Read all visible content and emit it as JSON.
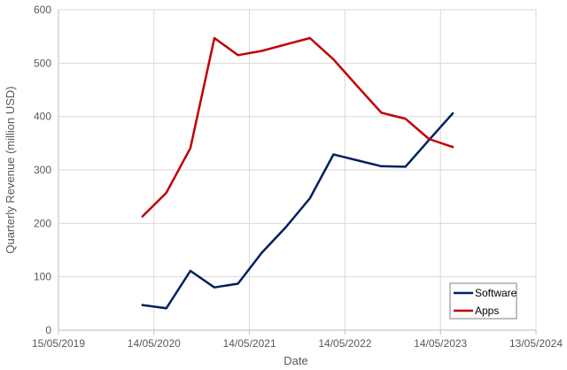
{
  "chart_data": {
    "type": "line",
    "title": "",
    "xlabel": "Date",
    "ylabel": "Quarterly Revenue (million USD)",
    "x_axis_type": "date",
    "xlim": [
      "2019-05-15",
      "2024-05-13"
    ],
    "ylim": [
      0,
      600
    ],
    "x_ticks": [
      "15/05/2019",
      "14/05/2020",
      "14/05/2021",
      "14/05/2022",
      "14/05/2023",
      "13/05/2024"
    ],
    "y_ticks": [
      0,
      100,
      200,
      300,
      400,
      500,
      600
    ],
    "grid": true,
    "legend_position": "bottom-right",
    "series": [
      {
        "name": "Software",
        "color": "#002060",
        "points": [
          {
            "x": "2020-03-31",
            "y": 47
          },
          {
            "x": "2020-06-30",
            "y": 41
          },
          {
            "x": "2020-09-30",
            "y": 111
          },
          {
            "x": "2020-12-31",
            "y": 80
          },
          {
            "x": "2021-03-31",
            "y": 87
          },
          {
            "x": "2021-06-30",
            "y": 145
          },
          {
            "x": "2021-09-30",
            "y": 193
          },
          {
            "x": "2021-12-31",
            "y": 247
          },
          {
            "x": "2022-03-31",
            "y": 329
          },
          {
            "x": "2022-06-30",
            "y": 318
          },
          {
            "x": "2022-09-30",
            "y": 307
          },
          {
            "x": "2022-12-31",
            "y": 306
          },
          {
            "x": "2023-03-31",
            "y": 356
          },
          {
            "x": "2023-06-30",
            "y": 406
          }
        ]
      },
      {
        "name": "Apps",
        "color": "#c00000",
        "points": [
          {
            "x": "2020-03-31",
            "y": 213
          },
          {
            "x": "2020-06-30",
            "y": 257
          },
          {
            "x": "2020-09-30",
            "y": 341
          },
          {
            "x": "2020-12-31",
            "y": 547
          },
          {
            "x": "2021-03-31",
            "y": 515
          },
          {
            "x": "2021-06-30",
            "y": 523
          },
          {
            "x": "2021-09-30",
            "y": 535
          },
          {
            "x": "2021-12-31",
            "y": 547
          },
          {
            "x": "2022-03-31",
            "y": 507
          },
          {
            "x": "2022-06-30",
            "y": 457
          },
          {
            "x": "2022-09-30",
            "y": 407
          },
          {
            "x": "2022-12-31",
            "y": 396
          },
          {
            "x": "2023-03-31",
            "y": 358
          },
          {
            "x": "2023-06-30",
            "y": 343
          }
        ]
      }
    ]
  }
}
